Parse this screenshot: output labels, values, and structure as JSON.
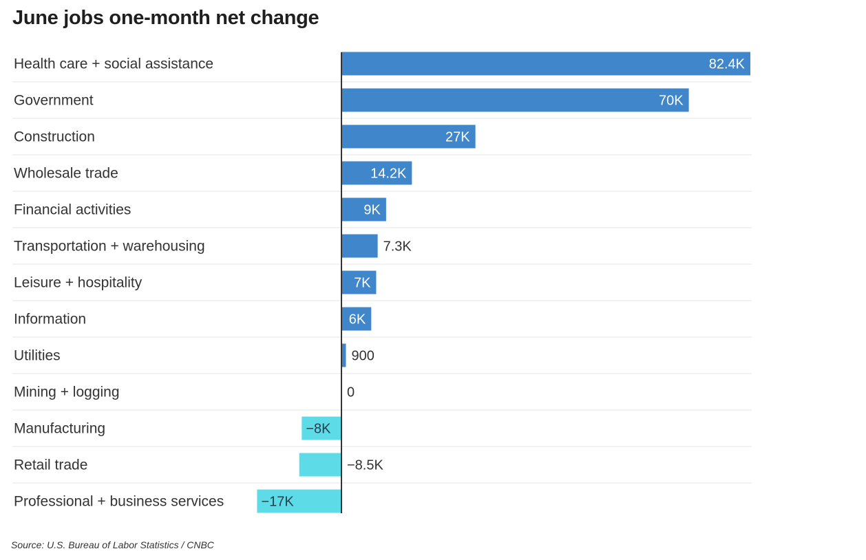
{
  "header": {
    "title": "June jobs one-month net change"
  },
  "footer": {
    "source": "Source: U.S. Bureau of Labor Statistics / CNBC"
  },
  "colors": {
    "positive": "#3f86cb",
    "negative": "#5ddce8",
    "axis": "#333333",
    "grid": "#e6e6e6"
  },
  "chart_data": {
    "type": "bar",
    "orientation": "horizontal",
    "title": "June jobs one-month net change",
    "categories": [
      "Health care + social assistance",
      "Government",
      "Construction",
      "Wholesale trade",
      "Financial activities",
      "Transportation + warehousing",
      "Leisure + hospitality",
      "Information",
      "Utilities",
      "Mining + logging",
      "Manufacturing",
      "Retail trade",
      "Professional + business services"
    ],
    "values": [
      82400,
      70000,
      27000,
      14200,
      9000,
      7300,
      7000,
      6000,
      900,
      0,
      -8000,
      -8500,
      -17000
    ],
    "labels": [
      "82.4K",
      "70K",
      "27K",
      "14.2K",
      "9K",
      "7.3K",
      "7K",
      "6K",
      "900",
      "0",
      "−8K",
      "−8.5K",
      "−17K"
    ],
    "xlim": [
      -17000,
      82400
    ],
    "grid": true
  }
}
